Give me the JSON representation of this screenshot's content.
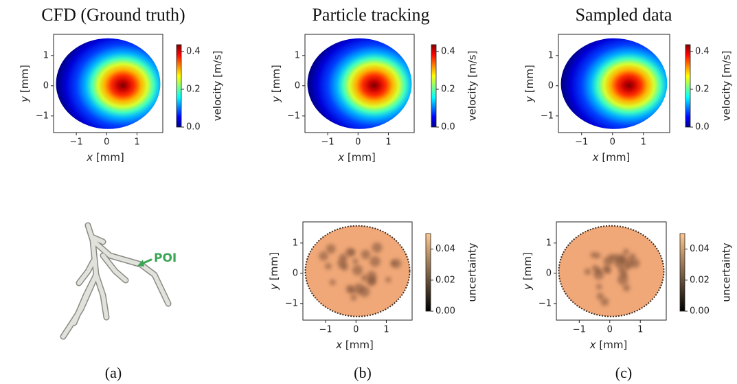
{
  "titles": [
    "CFD (Ground truth)",
    "Particle tracking",
    "Sampled data"
  ],
  "captions": [
    "(a)",
    "(b)",
    "(c)"
  ],
  "poi_label": "POI",
  "axes": {
    "x_var": "x",
    "y_var": "y",
    "unit": "[mm]",
    "xlim": [
      -1.75,
      1.85
    ],
    "ylim": [
      -1.55,
      1.7
    ],
    "xticks": [
      {
        "value": -1,
        "label": "−1"
      },
      0,
      1
    ],
    "yticks": [
      {
        "value": -1,
        "label": "−1"
      },
      0,
      1
    ]
  },
  "velocity_colorbar": {
    "label": "velocity [m/s]",
    "lim": [
      0,
      0.436
    ],
    "ticks": [
      {
        "value": 0,
        "label": "0.0"
      },
      {
        "value": 0.2,
        "label": "0.2"
      },
      {
        "value": 0.4,
        "label": "0.4"
      }
    ]
  },
  "uncertainty_colorbar": {
    "label": "uncertainty",
    "lim": [
      0,
      0.05
    ],
    "ticks": [
      {
        "value": 0,
        "label": "0.00"
      },
      {
        "value": 0.02,
        "label": "0.02"
      },
      {
        "value": 0.04,
        "label": "0.04"
      }
    ]
  }
}
